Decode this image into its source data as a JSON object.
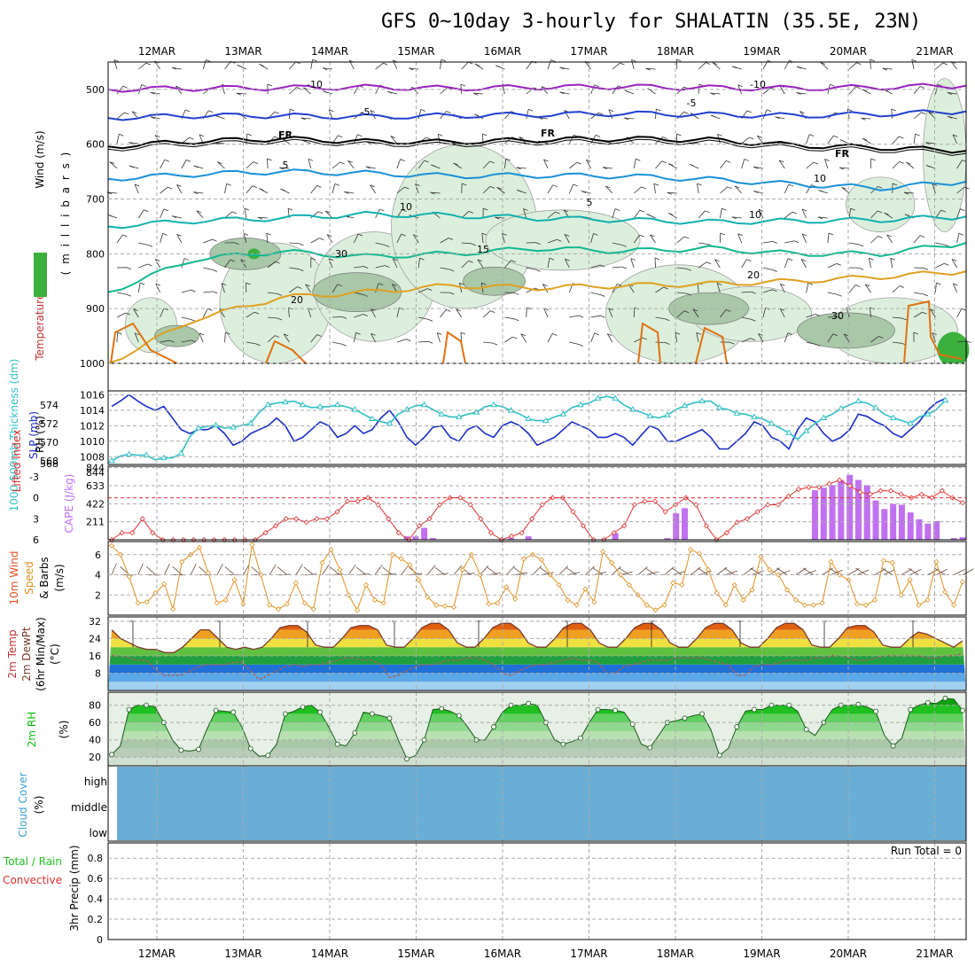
{
  "title": "GFS 0~10day 3-hourly for SHALATIN (35.5E, 23N)",
  "dates": [
    "12MAR",
    "13MAR",
    "14MAR",
    "15MAR",
    "16MAR",
    "17MAR",
    "18MAR",
    "19MAR",
    "20MAR",
    "21MAR"
  ],
  "colors": {
    "rh_fill": "#dcefdc",
    "rh_mid": "#a8c8a8",
    "rh_dark": "#7f9f7f",
    "temp_m10": "#9a20c0",
    "temp_m5": "#2040d0",
    "temp_fr": "#000000",
    "temp_5": "#1890d8",
    "temp_10": "#10b0b0",
    "temp_15": "#10b890",
    "temp_20": "#e0a020",
    "temp_25": "#e06010",
    "slp": "#1c2fc8",
    "thickness": "#30c0c8",
    "cape": "#c070f0",
    "lifted": "#e03030",
    "wind10": "#e09020",
    "dew": "#a06060",
    "rh2m": "#10c010",
    "cloud": "#6aaed6",
    "grid": "#aaaaaa"
  },
  "chart_data": [
    {
      "type": "contour",
      "name": "upper_air",
      "ylabel_parts": [
        "RH (%)",
        "Temperature (°C)",
        "Wind (m/s)",
        "( m i l l i b a r s )"
      ],
      "y_ticks": [
        500,
        600,
        700,
        800,
        900,
        1000
      ],
      "ylim": [
        450,
        1000
      ],
      "contour_labels": [
        "-10",
        "-10",
        "-5",
        "-5",
        "FR",
        "FR",
        "FR",
        "5",
        "5",
        "10",
        "10",
        "15",
        "20",
        "20",
        "30",
        "30",
        "10"
      ],
      "isotherms": [
        {
          "name": "-10",
          "x": [
            0,
            1,
            2,
            3,
            4,
            5,
            6,
            7,
            8,
            9,
            10
          ],
          "p": [
            500,
            498,
            497,
            496,
            498,
            496,
            495,
            497,
            498,
            496,
            493
          ]
        },
        {
          "name": "-5",
          "x": [
            0,
            1,
            2,
            3,
            4,
            5,
            6,
            7,
            8,
            9,
            10
          ],
          "p": [
            552,
            548,
            548,
            550,
            548,
            546,
            544,
            546,
            548,
            545,
            540
          ]
        },
        {
          "name": "FR",
          "x": [
            0,
            1,
            2,
            3,
            4,
            5,
            6,
            7,
            8,
            9,
            10
          ],
          "p": [
            604,
            595,
            590,
            595,
            596,
            592,
            590,
            592,
            602,
            606,
            612
          ]
        },
        {
          "name": "5",
          "x": [
            0,
            1,
            2,
            3,
            4,
            5,
            6,
            7,
            8,
            9,
            10
          ],
          "p": [
            663,
            655,
            650,
            653,
            658,
            657,
            658,
            664,
            673,
            680,
            668
          ]
        },
        {
          "name": "10",
          "x": [
            0,
            1,
            2,
            3,
            4,
            5,
            6,
            7,
            8,
            9,
            10
          ],
          "p": [
            750,
            740,
            735,
            728,
            730,
            735,
            738,
            742,
            740,
            738,
            732
          ]
        },
        {
          "name": "15",
          "x": [
            0,
            1,
            2,
            3,
            4,
            5,
            6,
            7,
            8,
            9,
            10
          ],
          "p": [
            870,
            810,
            796,
            805,
            800,
            790,
            795,
            790,
            800,
            800,
            780
          ]
        },
        {
          "name": "20",
          "x": [
            0,
            1,
            2,
            3,
            4,
            5,
            6,
            7,
            8,
            9,
            10
          ],
          "p": [
            1000,
            920,
            880,
            870,
            858,
            862,
            858,
            855,
            850,
            842,
            832
          ]
        }
      ]
    },
    {
      "type": "line",
      "name": "slp_thickness",
      "ylabel_left": "1000-500mb Thickness (dm)",
      "ylabel_right": "SLP (mb)",
      "y_ticks_left": [
        568,
        570,
        572,
        574
      ],
      "y_ticks_right": [
        1008,
        1010,
        1012,
        1014,
        1016
      ],
      "series": [
        {
          "name": "SLP (mb)",
          "axis": "right",
          "x_step": 0.125,
          "values": [
            1014.5,
            1015.2,
            1016,
            1015.2,
            1014.5,
            1014,
            1014.5,
            1013,
            1011.5,
            1011,
            1011.5,
            1011.5,
            1012,
            1011,
            1009.5,
            1010,
            1011,
            1011.5,
            1012,
            1013,
            1012,
            1010,
            1010.5,
            1011.5,
            1012.5,
            1012,
            1010.5,
            1011,
            1012,
            1011,
            1011.5,
            1013,
            1014,
            1012.5,
            1010.5,
            1009.5,
            1010.5,
            1011.8,
            1012,
            1010.5,
            1010,
            1011.5,
            1012,
            1011,
            1010.5,
            1012,
            1012.5,
            1012,
            1011,
            1009.5,
            1010,
            1010.5,
            1011.5,
            1012.5,
            1012,
            1011.5,
            1010.5,
            1010.5,
            1011,
            1010.5,
            1009.5,
            1010.8,
            1012,
            1011.5,
            1010,
            1010,
            1010.5,
            1011,
            1011.5,
            1010.5,
            1009,
            1009,
            1010,
            1011,
            1012.5,
            1012,
            1010.5,
            1010,
            1009,
            1011.5,
            1013,
            1012.5,
            1011,
            1010,
            1010.5,
            1011.5,
            1013.5,
            1013.2,
            1012.5,
            1012,
            1011,
            1010.5,
            1011.5,
            1012.5,
            1014,
            1015,
            1015.5
          ]
        },
        {
          "name": "1000-500mb Thickness (dm)",
          "axis": "left",
          "x_step": 0.125,
          "values": [
            568,
            568.5,
            568.7,
            568.6,
            568.6,
            568.1,
            568.3,
            568.3,
            568.8,
            570.6,
            571.5,
            571.7,
            571.8,
            571.5,
            571.6,
            571.8,
            572,
            573.2,
            574,
            574.2,
            574.3,
            574.4,
            574,
            573.7,
            573.8,
            573.8,
            574,
            573.8,
            573.5,
            573,
            572.5,
            572.2,
            572,
            573,
            573.5,
            573.9,
            574,
            573.5,
            573,
            572.7,
            572.7,
            573,
            573.2,
            573.8,
            574,
            573.8,
            573.4,
            573,
            572.5,
            572.3,
            572.3,
            572.7,
            573,
            573.7,
            574,
            574.2,
            574.7,
            574.9,
            574.7,
            574,
            573.5,
            573.2,
            572.8,
            572.6,
            572.9,
            573.5,
            573.9,
            574.2,
            574.4,
            574.4,
            573.7,
            573.5,
            573.1,
            573,
            572.7,
            572.5,
            572,
            571.5,
            571,
            570.3,
            571.2,
            572,
            572.6,
            573,
            573.6,
            574,
            574.4,
            574.2,
            573.7,
            573,
            572.6,
            572.3,
            572,
            572.7,
            573,
            573.5,
            574.5
          ]
        }
      ]
    },
    {
      "type": "bar",
      "name": "cape_li",
      "ylabel_left": "Lifted Index",
      "ylabel_right": "CAPE (J/kg)",
      "y_ticks_left": [
        -3,
        0,
        3,
        6
      ],
      "y_ticks_right": [
        211,
        422,
        633,
        844
      ],
      "lifted_index": [
        6,
        5,
        5,
        3,
        5,
        6,
        6,
        6,
        6,
        6,
        6,
        6,
        6,
        6,
        6,
        5,
        4,
        3,
        3,
        3.5,
        3,
        3,
        2,
        0.5,
        0.5,
        0,
        1,
        3,
        5,
        6,
        4,
        3,
        1,
        0,
        0,
        1,
        3,
        5,
        6,
        5.5,
        5,
        3,
        1,
        0,
        0,
        2,
        4,
        6,
        6,
        5,
        4,
        1,
        0.5,
        0.5,
        2,
        1,
        0,
        1,
        4,
        6,
        5,
        3.5,
        3,
        2,
        1,
        1,
        -0.2,
        -1.2,
        -1.5,
        -1.5,
        -2,
        -2.5,
        -1.7,
        -0.8,
        -0.5,
        -1,
        -1,
        -0.5,
        0,
        -0.5,
        0,
        -1,
        0,
        0.7
      ],
      "cape_bars": [
        {
          "i": 34,
          "v": 40
        },
        {
          "i": 35,
          "v": 40
        },
        {
          "i": 36,
          "v": 140
        },
        {
          "i": 37,
          "v": 20
        },
        {
          "i": 46,
          "v": 20
        },
        {
          "i": 48,
          "v": 40
        },
        {
          "i": 58,
          "v": 80
        },
        {
          "i": 64,
          "v": 20
        },
        {
          "i": 65,
          "v": 310
        },
        {
          "i": 66,
          "v": 370
        },
        {
          "i": 81,
          "v": 580
        },
        {
          "i": 82,
          "v": 610
        },
        {
          "i": 83,
          "v": 640
        },
        {
          "i": 84,
          "v": 700
        },
        {
          "i": 85,
          "v": 760
        },
        {
          "i": 86,
          "v": 700
        },
        {
          "i": 87,
          "v": 640
        },
        {
          "i": 88,
          "v": 460
        },
        {
          "i": 89,
          "v": 360
        },
        {
          "i": 90,
          "v": 420
        },
        {
          "i": 91,
          "v": 410
        },
        {
          "i": 92,
          "v": 320
        },
        {
          "i": 93,
          "v": 240
        },
        {
          "i": 94,
          "v": 190
        },
        {
          "i": 95,
          "v": 220
        },
        {
          "i": 97,
          "v": 20
        },
        {
          "i": 98,
          "v": 30
        }
      ]
    },
    {
      "type": "line",
      "name": "wind10m",
      "ylabel": "10m Wind Speed & Barbs (m/s)",
      "y_ticks": [
        2,
        4,
        6
      ],
      "values": [
        6.9,
        6,
        3.8,
        1.2,
        1.3,
        2.2,
        3.1,
        0.6,
        5.3,
        6,
        6.7,
        4.2,
        1.2,
        1.5,
        3.5,
        1.1,
        7,
        4,
        1,
        0.6,
        1.1,
        3.2,
        1.2,
        0.6,
        5.2,
        6.5,
        4.5,
        2,
        0.5,
        3,
        1.5,
        1.2,
        6,
        5.6,
        5,
        3.5,
        1.8,
        1,
        0.9,
        0.8,
        4.5,
        6,
        4,
        1.1,
        1.2,
        2.8,
        1.6,
        5.6,
        6,
        5.5,
        4,
        3,
        1.5,
        1,
        2.6,
        1.3,
        6.3,
        5.2,
        4,
        3,
        2,
        1,
        0.5,
        1,
        3.2,
        3,
        6.5,
        6.1,
        4.5,
        2.2,
        1,
        3,
        1.5,
        2.5,
        5.8,
        4.5,
        4,
        2.5,
        1.5,
        1,
        1,
        1.2,
        5.3,
        4,
        3.5,
        1.1,
        1,
        1.5,
        5.4,
        5.2,
        2,
        3.5,
        1,
        1.5,
        5.3,
        2.3,
        1,
        3.3
      ]
    },
    {
      "type": "area",
      "name": "temp2m",
      "ylabel": "2m Temp 2m DewPt (6hr Min/Max) (°C)",
      "y_ticks": [
        8,
        16,
        24,
        32
      ],
      "temp": [
        28,
        24,
        22,
        20,
        19,
        19,
        17.5,
        17.5,
        20,
        24,
        28,
        28,
        24,
        20,
        19,
        20,
        19,
        20,
        24,
        29,
        30,
        30,
        27,
        21,
        20,
        20,
        24,
        29,
        30,
        30,
        28,
        21,
        20,
        20,
        24,
        29,
        31,
        31,
        28,
        22,
        20,
        20,
        24,
        29,
        31,
        31,
        28,
        22,
        20,
        20,
        24,
        29,
        31,
        31,
        28,
        22,
        20,
        20,
        24,
        29,
        31,
        31,
        28,
        22,
        20,
        20,
        24,
        29,
        31,
        31,
        28,
        22,
        20,
        20,
        24,
        29,
        31,
        31,
        28,
        21,
        20,
        20,
        24,
        29,
        30,
        30,
        27,
        21,
        20,
        20,
        24,
        27,
        26,
        24,
        22,
        20,
        23
      ],
      "dew": [
        16,
        16,
        15,
        14,
        14,
        10,
        7,
        7,
        7,
        9,
        11,
        12,
        12,
        12,
        13,
        13,
        9,
        5,
        7,
        9,
        11,
        12,
        11,
        12,
        12,
        13,
        14,
        15,
        15,
        14,
        14,
        12,
        6,
        7,
        9,
        11,
        12,
        12,
        13,
        14,
        14,
        15,
        15,
        14,
        12,
        8,
        7,
        9,
        11,
        12,
        12,
        13,
        14,
        15,
        14,
        14,
        13,
        8,
        8,
        11,
        12,
        13,
        14,
        14,
        14,
        15,
        15,
        15,
        15,
        14,
        13,
        12,
        7,
        7,
        11,
        12,
        12,
        13,
        14,
        14,
        14,
        15,
        15,
        16,
        16,
        15,
        14,
        14,
        15,
        16,
        16,
        16,
        16,
        16,
        15,
        15,
        16,
        16,
        17
      ]
    },
    {
      "type": "area",
      "name": "rh2m",
      "ylabel": "2m RH (%)",
      "y_ticks": [
        20,
        40,
        60,
        80
      ],
      "values": [
        23,
        33,
        75,
        80,
        80,
        78,
        60,
        40,
        28,
        27,
        29,
        53,
        74,
        73,
        72,
        55,
        30,
        21,
        22,
        35,
        70,
        73,
        78,
        80,
        72,
        55,
        35,
        33,
        48,
        72,
        70,
        68,
        65,
        40,
        18,
        22,
        40,
        75,
        76,
        73,
        68,
        55,
        40,
        40,
        55,
        72,
        80,
        80,
        82,
        80,
        60,
        40,
        35,
        38,
        42,
        60,
        75,
        75,
        74,
        72,
        58,
        35,
        31,
        45,
        60,
        62,
        65,
        68,
        70,
        52,
        22,
        30,
        55,
        73,
        75,
        75,
        80,
        80,
        80,
        73,
        52,
        45,
        60,
        75,
        80,
        80,
        81,
        78,
        73,
        45,
        33,
        42,
        75,
        80,
        83,
        82,
        88,
        87,
        74
      ]
    },
    {
      "type": "table",
      "name": "cloud_cover",
      "ylabel": "Cloud Cover (%)",
      "levels": [
        "high",
        "middle",
        "low"
      ]
    },
    {
      "type": "bar",
      "name": "precip",
      "ylabel": "3hr Precip (mm)",
      "ylabel_left": "Total / Rain",
      "ylabel_left2": "Convective",
      "y_ticks": [
        "0",
        "0.2",
        "0.4",
        "0.6",
        "0.8"
      ],
      "annotation": "Run Total = 0",
      "values": []
    }
  ]
}
